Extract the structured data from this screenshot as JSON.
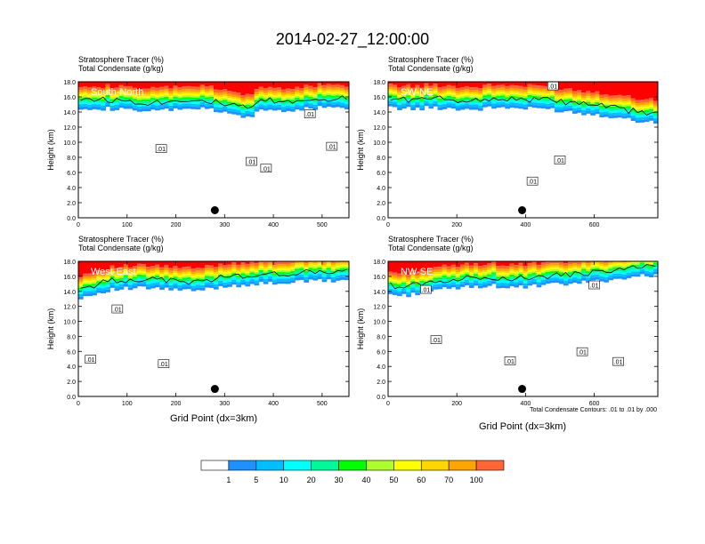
{
  "title": "2014-02-27_12:00:00",
  "common": {
    "line1": "Stratosphere Tracer   (%)",
    "line2": "Total Condensate   (g/kg)",
    "ylabel": "Height (km)",
    "xlabel": "Grid Point (dx=3km)",
    "contour_note": "Total Condensate Contours: .01 to .01 by .000",
    "contour_label": ".01"
  },
  "colorbar": {
    "levels": [
      "1",
      "5",
      "10",
      "20",
      "30",
      "40",
      "50",
      "60",
      "70",
      "100"
    ],
    "colors": [
      "#ffffff",
      "#1e90ff",
      "#00bfff",
      "#00ffff",
      "#00fa9a",
      "#00ff00",
      "#adff2f",
      "#ffff00",
      "#ffd700",
      "#ffa500",
      "#ff6633",
      "#ff0000"
    ]
  },
  "chart_data": [
    {
      "type": "heatmap",
      "name": "South-North",
      "xlim": [
        0,
        555
      ],
      "xticks": [
        0,
        100,
        200,
        300,
        400,
        500
      ],
      "ylim": [
        0,
        18
      ],
      "yticks": [
        "0.0",
        "2.0",
        "4.0",
        "6.0",
        "8.0",
        "10.0",
        "12.0",
        "14.0",
        "16.0",
        "18.0"
      ],
      "marker": {
        "x": 280,
        "y": 1.0
      },
      "tracer_base_km": [
        14.6,
        14.5,
        14.4,
        14.3,
        14.2,
        14.0,
        14.2,
        14.4,
        14.5,
        14.3,
        14.0,
        13.6,
        13.2,
        14.4,
        14.2,
        14.0,
        14.5,
        14.6,
        14.5,
        14.6
      ],
      "contour_labels": [
        {
          "x": 170,
          "y": 9.1
        },
        {
          "x": 355,
          "y": 7.4
        },
        {
          "x": 385,
          "y": 6.5
        },
        {
          "x": 475,
          "y": 13.7
        },
        {
          "x": 520,
          "y": 9.4
        }
      ]
    },
    {
      "type": "heatmap",
      "name": "SW-NE",
      "xlim": [
        0,
        785
      ],
      "xticks": [
        0,
        200,
        400,
        600
      ],
      "ylim": [
        0,
        18
      ],
      "yticks": [
        "0.0",
        "2.0",
        "4.0",
        "6.0",
        "8.0",
        "10.0",
        "12.0",
        "14.0",
        "16.0",
        "18.0"
      ],
      "marker": {
        "x": 390,
        "y": 1.0
      },
      "tracer_base_km": [
        14.5,
        14.5,
        14.4,
        14.6,
        14.5,
        14.4,
        14.3,
        14.5,
        14.6,
        14.5,
        14.4,
        14.5,
        14.2,
        14.0,
        13.8,
        13.6,
        13.4,
        13.0,
        12.8,
        12.6
      ],
      "contour_labels": [
        {
          "x": 420,
          "y": 4.8
        },
        {
          "x": 500,
          "y": 7.6
        },
        {
          "x": 480,
          "y": 17.4
        }
      ]
    },
    {
      "type": "heatmap",
      "name": "West-East",
      "xlim": [
        0,
        555
      ],
      "xticks": [
        0,
        100,
        200,
        300,
        400,
        500
      ],
      "ylim": [
        0,
        18
      ],
      "yticks": [
        "0.0",
        "2.0",
        "4.0",
        "6.0",
        "8.0",
        "10.0",
        "12.0",
        "14.0",
        "16.0",
        "18.0"
      ],
      "marker": {
        "x": 280,
        "y": 1.0
      },
      "tracer_base_km": [
        13.2,
        13.6,
        14.2,
        14.3,
        14.4,
        14.4,
        14.3,
        14.2,
        14.0,
        14.3,
        14.6,
        14.8,
        14.9,
        15.0,
        15.1,
        15.2,
        15.3,
        15.4,
        15.4,
        15.5
      ],
      "contour_labels": [
        {
          "x": 80,
          "y": 11.6
        },
        {
          "x": 25,
          "y": 4.9
        },
        {
          "x": 175,
          "y": 4.3
        }
      ]
    },
    {
      "type": "heatmap",
      "name": "NW-SE",
      "xlim": [
        0,
        785
      ],
      "xticks": [
        0,
        200,
        400,
        600
      ],
      "ylim": [
        0,
        18
      ],
      "yticks": [
        "0.0",
        "2.0",
        "4.0",
        "6.0",
        "8.0",
        "10.0",
        "12.0",
        "14.0",
        "16.0",
        "18.0"
      ],
      "marker": {
        "x": 390,
        "y": 1.0
      },
      "tracer_base_km": [
        13.6,
        13.4,
        13.8,
        14.0,
        14.3,
        14.5,
        14.6,
        14.8,
        14.6,
        14.5,
        14.6,
        14.8,
        14.9,
        15.0,
        15.2,
        15.4,
        15.6,
        15.8,
        16.0,
        16.2
      ],
      "contour_labels": [
        {
          "x": 110,
          "y": 14.2
        },
        {
          "x": 140,
          "y": 7.5
        },
        {
          "x": 355,
          "y": 4.7
        },
        {
          "x": 565,
          "y": 5.9
        },
        {
          "x": 670,
          "y": 4.6
        },
        {
          "x": 600,
          "y": 14.8
        }
      ]
    }
  ]
}
